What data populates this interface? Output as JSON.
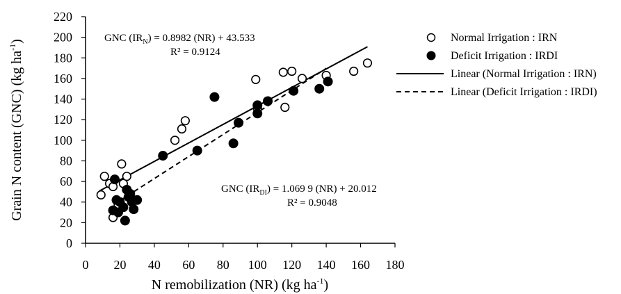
{
  "chart_data": {
    "type": "scatter",
    "xlabel": "N remobilization (NR) (kg ha",
    "xlabel_sup": "-1",
    "xlabel_end": ")",
    "ylabel": "Grain N content (GNC) (kg ha",
    "ylabel_sup": "-1",
    "ylabel_end": ")",
    "xlim": [
      0,
      180
    ],
    "ylim": [
      0,
      220
    ],
    "x_ticks": [
      "0",
      "20",
      "40",
      "60",
      "80",
      "100",
      "120",
      "140",
      "160",
      "180"
    ],
    "y_ticks": [
      "0",
      "20",
      "40",
      "60",
      "80",
      "100",
      "120",
      "140",
      "160",
      "180",
      "200",
      "220"
    ],
    "grid": false,
    "legend_position": "top-right",
    "series": [
      {
        "name": "Normal Irrigation : IRN",
        "marker": "open-circle",
        "color": "#000000",
        "points": [
          [
            9,
            47
          ],
          [
            11,
            65
          ],
          [
            14,
            58
          ],
          [
            16,
            55
          ],
          [
            16,
            25
          ],
          [
            19,
            37
          ],
          [
            21,
            77
          ],
          [
            22,
            58
          ],
          [
            24,
            65
          ],
          [
            26,
            45
          ],
          [
            52,
            100
          ],
          [
            56,
            111
          ],
          [
            58,
            119
          ],
          [
            99,
            159
          ],
          [
            100,
            131
          ],
          [
            115,
            166
          ],
          [
            116,
            132
          ],
          [
            120,
            167
          ],
          [
            126,
            160
          ],
          [
            140,
            163
          ],
          [
            156,
            167
          ],
          [
            164,
            175
          ]
        ]
      },
      {
        "name": "Deficit Irrigation : IRDI",
        "marker": "filled-circle",
        "color": "#000000",
        "points": [
          [
            16,
            32
          ],
          [
            17,
            62
          ],
          [
            18,
            42
          ],
          [
            19,
            30
          ],
          [
            20,
            40
          ],
          [
            22,
            35
          ],
          [
            23,
            22
          ],
          [
            24,
            52
          ],
          [
            25,
            45
          ],
          [
            26,
            48
          ],
          [
            27,
            40
          ],
          [
            28,
            33
          ],
          [
            30,
            42
          ],
          [
            45,
            85
          ],
          [
            65,
            90
          ],
          [
            75,
            142
          ],
          [
            86,
            97
          ],
          [
            89,
            117
          ],
          [
            100,
            126
          ],
          [
            100,
            134
          ],
          [
            106,
            138
          ],
          [
            121,
            148
          ],
          [
            136,
            150
          ],
          [
            141,
            157
          ]
        ]
      }
    ],
    "trendlines": [
      {
        "name": "Linear (Normal Irrigation : IRN)",
        "style": "solid",
        "slope": 0.8982,
        "intercept": 43.533,
        "x_range": [
          8,
          164
        ]
      },
      {
        "name": "Linear (Deficit Irrigation : IRDI)",
        "style": "dashed",
        "slope": 1.0699,
        "intercept": 20.012,
        "x_range": [
          20,
          140
        ]
      }
    ],
    "annotations": {
      "irn_eq_prefix": "GNC (IR",
      "irn_eq_sub": "N",
      "irn_eq_suffix": ") = 0.8982 (NR) + 43.533",
      "irn_r2": "R² = 0.9124",
      "irdi_eq_prefix": "GNC (IR",
      "irdi_eq_sub": "DI",
      "irdi_eq_suffix": ") = 1.069 9 (NR) + 20.012",
      "irdi_r2": "R² = 0.9048"
    },
    "legend": [
      {
        "label": "Normal Irrigation : IRN",
        "symbol": "open-circle"
      },
      {
        "label": "Deficit Irrigation : IRDI",
        "symbol": "filled-circle"
      },
      {
        "label": "Linear (Normal Irrigation : IRN)",
        "symbol": "solid-line"
      },
      {
        "label": "Linear (Deficit Irrigation : IRDI)",
        "symbol": "dashed-line"
      }
    ]
  }
}
